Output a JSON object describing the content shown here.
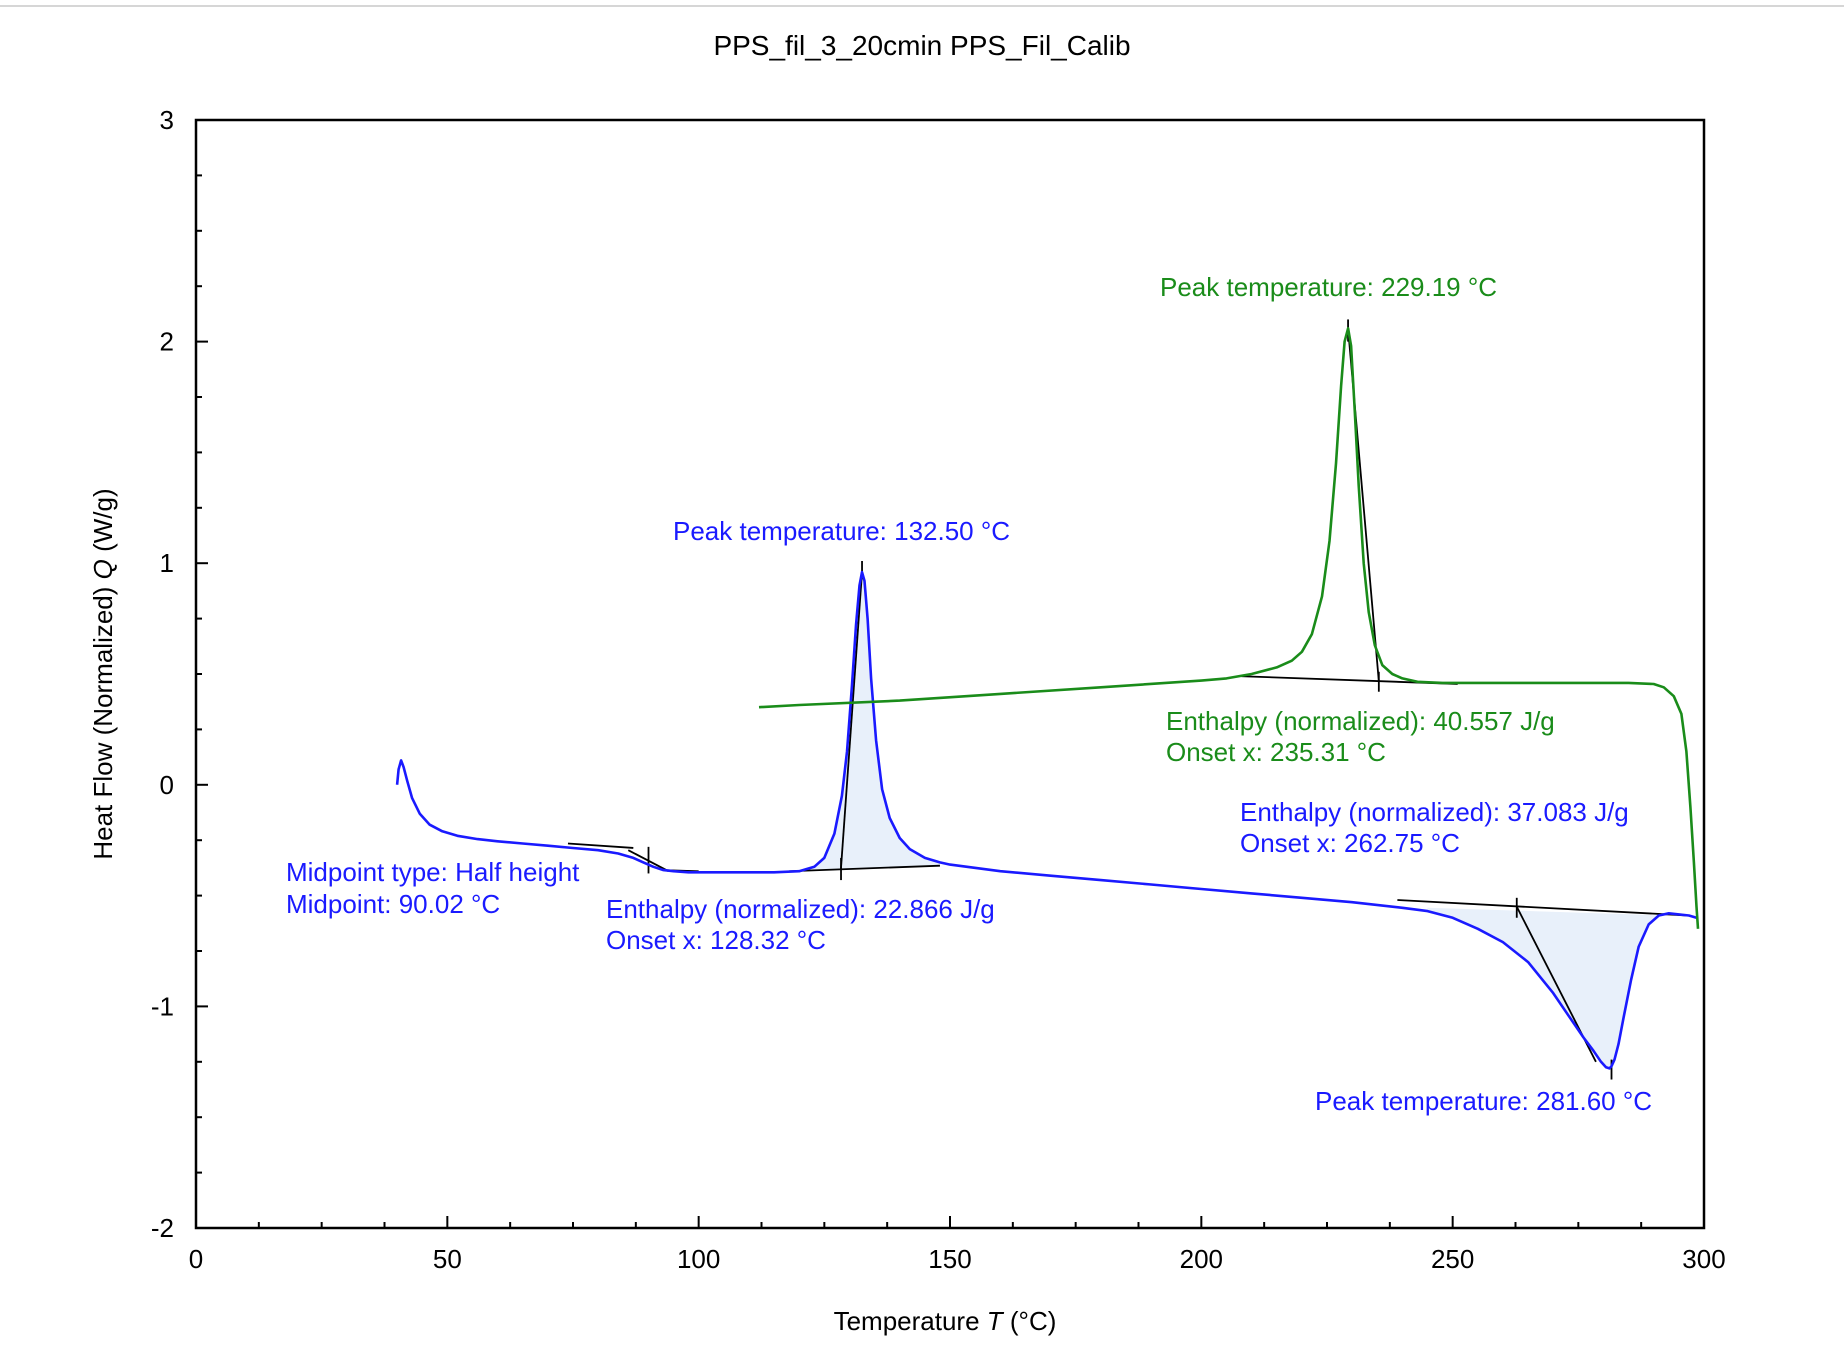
{
  "chart_data": {
    "type": "line",
    "title": "PPS_fil_3_20cmin PPS_Fil_Calib",
    "xlabel_prefix": "Temperature ",
    "xlabel_symbol": "T",
    "xlabel_unit": " (°C)",
    "ylabel_prefix": "Heat Flow (Normalized) ",
    "ylabel_symbol": "Q",
    "ylabel_unit": " (W/g)",
    "xlim": [
      0,
      300
    ],
    "ylim": [
      -2,
      3
    ],
    "x_ticks": [
      "0",
      "50",
      "100",
      "150",
      "200",
      "250",
      "300"
    ],
    "y_ticks": [
      "-2",
      "-1",
      "0",
      "1",
      "2",
      "3"
    ],
    "grid": false,
    "colors": {
      "heating": "#1a1aff",
      "cooling": "#1a8c1a",
      "fill": "#e8f0fa",
      "construction": "#000000"
    },
    "series": [
      {
        "color": "#1a1aff",
        "x": [
          40.0,
          40.3,
          40.8,
          41.3,
          42.0,
          43.0,
          44.5,
          46.5,
          49,
          52,
          56,
          60,
          65,
          70,
          75,
          80,
          84,
          87,
          89,
          91,
          93,
          95,
          98,
          102,
          108,
          115,
          120,
          123,
          125,
          127,
          128.5,
          129.5,
          130.5,
          131.3,
          132.0,
          132.5,
          133.0,
          133.6,
          134.3,
          135.3,
          136.5,
          138,
          140,
          142,
          145,
          148,
          150,
          160,
          170,
          180,
          190,
          200,
          210,
          220,
          230,
          240,
          245,
          250,
          255,
          260,
          265,
          270,
          273,
          276,
          278,
          279.5,
          280.5,
          281.2,
          281.6,
          282.2,
          283,
          284,
          285.5,
          287,
          289,
          291,
          293,
          295,
          297,
          298.5
        ],
        "y": [
          0.0,
          0.07,
          0.11,
          0.08,
          0.02,
          -0.06,
          -0.13,
          -0.18,
          -0.21,
          -0.23,
          -0.245,
          -0.255,
          -0.265,
          -0.275,
          -0.285,
          -0.295,
          -0.31,
          -0.33,
          -0.35,
          -0.37,
          -0.385,
          -0.39,
          -0.395,
          -0.395,
          -0.395,
          -0.395,
          -0.39,
          -0.37,
          -0.33,
          -0.22,
          -0.05,
          0.15,
          0.45,
          0.72,
          0.9,
          0.96,
          0.92,
          0.75,
          0.48,
          0.2,
          -0.02,
          -0.15,
          -0.24,
          -0.29,
          -0.33,
          -0.35,
          -0.36,
          -0.39,
          -0.41,
          -0.43,
          -0.45,
          -0.47,
          -0.49,
          -0.51,
          -0.53,
          -0.555,
          -0.57,
          -0.6,
          -0.65,
          -0.71,
          -0.8,
          -0.94,
          -1.04,
          -1.14,
          -1.2,
          -1.25,
          -1.275,
          -1.28,
          -1.27,
          -1.24,
          -1.17,
          -1.05,
          -0.88,
          -0.73,
          -0.63,
          -0.59,
          -0.58,
          -0.585,
          -0.59,
          -0.6
        ]
      },
      {
        "color": "#1a8c1a",
        "x": [
          112,
          120,
          140,
          160,
          180,
          200,
          205,
          210,
          215,
          218,
          220,
          222,
          224,
          225.5,
          226.8,
          227.8,
          228.5,
          229.19,
          229.8,
          230.5,
          231.3,
          232.3,
          233.3,
          234.5,
          236,
          238,
          240,
          243,
          248,
          255,
          265,
          275,
          285,
          290,
          292,
          294,
          295.5,
          296.5,
          297.3,
          298,
          298.5,
          298.8
        ],
        "y": [
          0.35,
          0.36,
          0.38,
          0.41,
          0.44,
          0.47,
          0.48,
          0.5,
          0.53,
          0.56,
          0.6,
          0.68,
          0.85,
          1.1,
          1.45,
          1.8,
          2.0,
          2.06,
          1.98,
          1.7,
          1.35,
          1.0,
          0.78,
          0.63,
          0.54,
          0.5,
          0.48,
          0.465,
          0.46,
          0.46,
          0.46,
          0.46,
          0.46,
          0.455,
          0.44,
          0.4,
          0.32,
          0.15,
          -0.1,
          -0.35,
          -0.55,
          -0.65
        ]
      }
    ],
    "annotations": {
      "peak_heat_1": "Peak temperature: 132.50 °C",
      "enthalpy_heat_1": "Enthalpy (normalized): 22.866 J/g",
      "onset_heat_1": "Onset x: 128.32 °C",
      "midpoint_type": "Midpoint type: Half height",
      "midpoint": "Midpoint: 90.02 °C",
      "peak_cool": "Peak temperature: 229.19 °C",
      "enthalpy_cool": "Enthalpy (normalized): 40.557 J/g",
      "onset_cool": "Onset x: 235.31 °C",
      "enthalpy_heat_2": "Enthalpy (normalized): 37.083 J/g",
      "onset_heat_2": "Onset x: 262.75 °C",
      "peak_heat_2": "Peak temperature: 281.60 °C"
    }
  }
}
